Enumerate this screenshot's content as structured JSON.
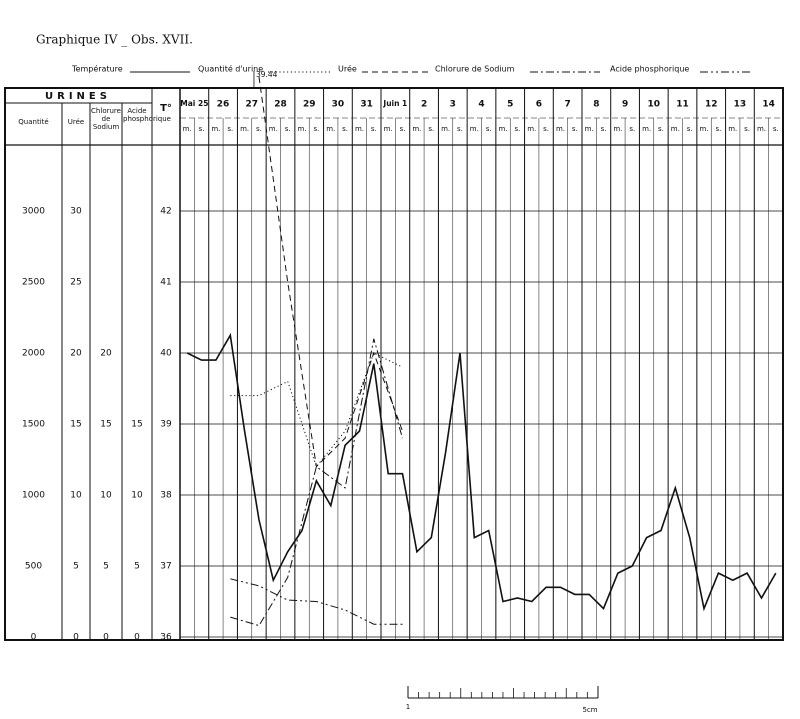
{
  "chart_data": {
    "type": "line",
    "title": "Graphique IV _ Obs. XVII.",
    "group_label": "URINES",
    "ylabel": "T°",
    "days": [
      "Mai 25",
      "26",
      "27",
      "28",
      "29",
      "30",
      "31",
      "Juin 1",
      "2",
      "3",
      "4",
      "5",
      "6",
      "7",
      "8",
      "9",
      "10",
      "11",
      "12",
      "13",
      "14"
    ],
    "halves": [
      "m.",
      "s."
    ],
    "ylim": [
      36,
      43
    ],
    "yticks": [
      36,
      37,
      38,
      39,
      40,
      41,
      42
    ],
    "grid": true,
    "scales": [
      {
        "label": "Quantité",
        "lim": [
          0,
          3500
        ],
        "ticks": [
          0,
          500,
          1000,
          1500,
          2000,
          2500,
          3000
        ]
      },
      {
        "label": "Urée",
        "lim": [
          0,
          35
        ],
        "ticks": [
          0,
          5,
          10,
          15,
          20,
          25,
          30
        ]
      },
      {
        "label": "Chlorure de Sodium",
        "lim": [
          0,
          35
        ],
        "ticks": [
          0,
          5,
          10,
          15,
          20
        ]
      },
      {
        "label": "Acide phosphorique",
        "lim": [
          0,
          35
        ],
        "ticks": [
          0,
          5,
          10,
          15
        ]
      }
    ],
    "series": [
      {
        "name": "Température",
        "color": "#111111",
        "style": "solid",
        "period": "half-day",
        "values": [
          40.0,
          39.9,
          39.9,
          40.25,
          38.9,
          37.65,
          36.8,
          37.2,
          37.5,
          38.2,
          37.85,
          38.7,
          38.9,
          39.85,
          38.3,
          38.3,
          37.2,
          37.4,
          38.6,
          40.0,
          37.4,
          37.5,
          36.5,
          36.55,
          36.5,
          36.7,
          36.7,
          36.6,
          36.6,
          36.4,
          36.9,
          37.0,
          37.4,
          37.5,
          38.1,
          37.4,
          36.4,
          36.9,
          36.8,
          36.9,
          36.55,
          36.9
        ]
      },
      {
        "name": "Quantité d'urine",
        "color": "#111111",
        "style": "dotted",
        "period": "day",
        "axis": "Quantité",
        "values": [
          null,
          1700,
          1700,
          1800,
          1200,
          1450,
          2000,
          1900,
          null,
          null,
          null,
          null,
          null,
          null,
          null,
          null,
          null,
          null,
          null,
          null,
          null
        ]
      },
      {
        "name": "Urée",
        "color": "#111111",
        "style": "dashed",
        "period": "day",
        "axis": "Urée",
        "values": [
          null,
          null,
          39.44,
          25,
          12,
          14,
          20,
          14.5,
          null,
          null,
          null,
          null,
          null,
          null,
          null,
          null,
          null,
          null,
          null,
          null,
          null
        ],
        "value_labels": [
          null,
          null,
          "39.44",
          null,
          null,
          null,
          null,
          null,
          null,
          null,
          null,
          null,
          null,
          null,
          null,
          null,
          null,
          null,
          null,
          null,
          null
        ]
      },
      {
        "name": "Chlorure de Sodium",
        "color": "#111111",
        "style": "dash-dot",
        "period": "day",
        "axis": "Chlorure de Sodium",
        "values": [
          null,
          1.4,
          0.8,
          4.2,
          12,
          10.5,
          21,
          14,
          null,
          null,
          null,
          null,
          null,
          null,
          null,
          null,
          null,
          null,
          null,
          null,
          null
        ]
      },
      {
        "name": "Acide phosphorique",
        "color": "#111111",
        "style": "dash-dot-dot",
        "period": "day",
        "axis": "Acide phosphorique",
        "values": [
          null,
          4.1,
          3.6,
          2.6,
          2.5,
          1.9,
          0.9,
          0.9,
          null,
          null,
          null,
          null,
          null,
          null,
          null,
          null,
          null,
          null,
          null,
          null,
          null
        ]
      }
    ],
    "scale_bar": {
      "start": "1",
      "end": "5cm"
    }
  }
}
